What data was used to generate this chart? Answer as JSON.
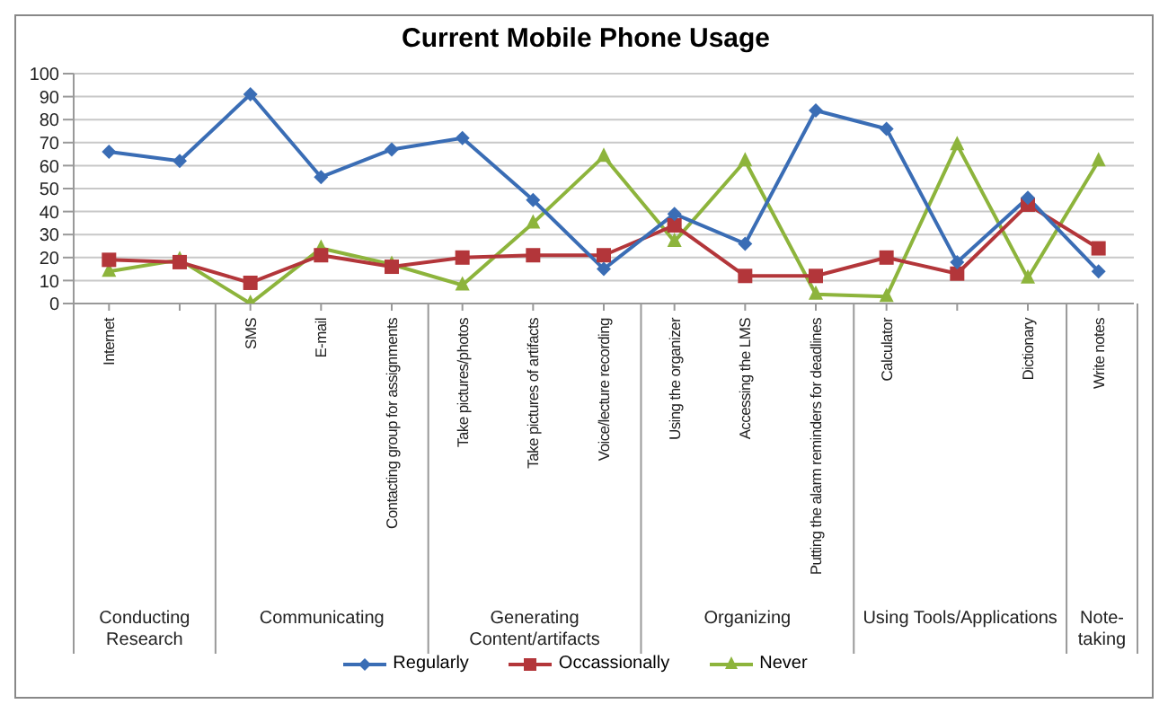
{
  "chart_data": {
    "type": "line",
    "title": "Current Mobile Phone Usage",
    "categories": [
      "Internet",
      null,
      "SMS",
      "E-mail",
      "Contacting group for assignments",
      "Take pictures/photos",
      "Take pictures of artifacts",
      "Voice/lecture recording",
      "Using the organizer",
      "Accessing the LMS",
      "Putting the alarm reminders for deadlines",
      "Calculator",
      null,
      "Dictionary",
      "Write notes"
    ],
    "series": [
      {
        "name": "Regularly",
        "color": "#3a6db5",
        "marker": "diamond",
        "values": [
          66,
          62,
          91,
          55,
          67,
          72,
          45,
          15,
          39,
          26,
          84,
          76,
          18,
          46,
          14
        ]
      },
      {
        "name": "Occassionally",
        "color": "#b3363a",
        "marker": "square",
        "values": [
          19,
          18,
          9,
          21,
          16,
          20,
          21,
          21,
          34,
          12,
          12,
          20,
          13,
          43,
          24
        ]
      },
      {
        "name": "Never",
        "color": "#8db43c",
        "marker": "triangle",
        "values": [
          14,
          19,
          0,
          24,
          17,
          8,
          35,
          64,
          27,
          62,
          4,
          3,
          69,
          11,
          62
        ]
      }
    ],
    "annotations": [
      "Conducting Research",
      "Communicating",
      "Generating Content/artifacts",
      "Organizing",
      "Using Tools/Applications",
      "Note-taking"
    ],
    "ylim": [
      0,
      100
    ],
    "yticks": [
      0,
      10,
      20,
      30,
      40,
      50,
      60,
      70,
      80,
      90,
      100
    ],
    "grid": "y",
    "legend": "bottom",
    "line_style": "solid"
  }
}
